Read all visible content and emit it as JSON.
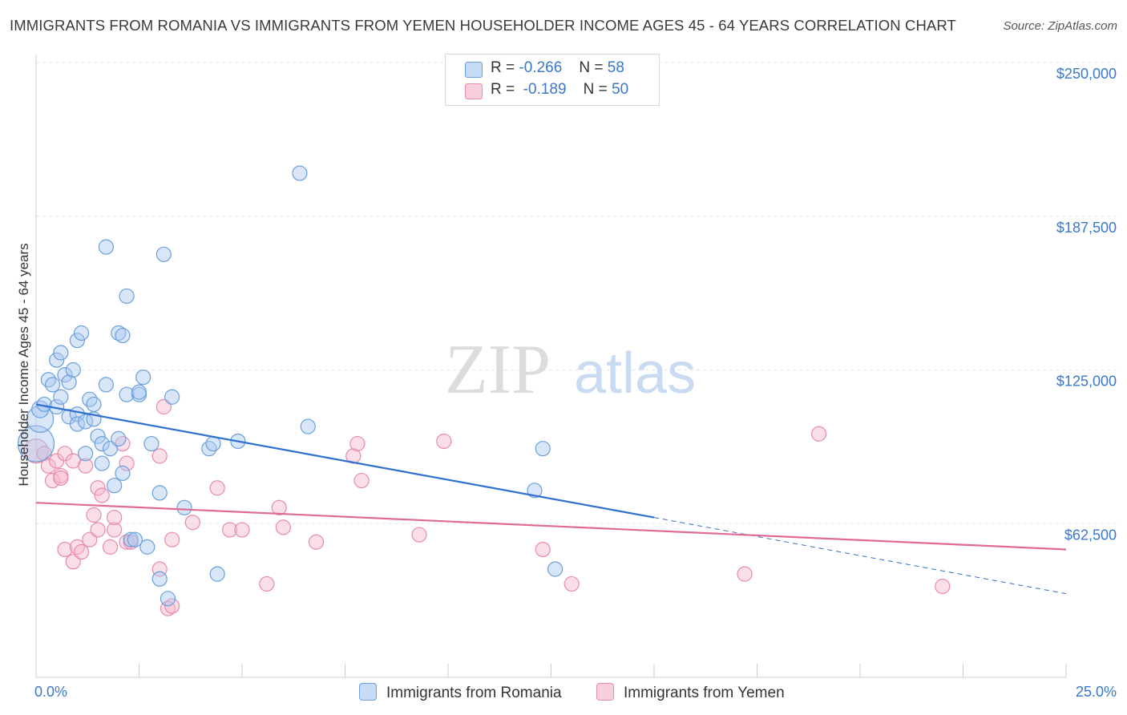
{
  "title": "IMMIGRANTS FROM ROMANIA VS IMMIGRANTS FROM YEMEN HOUSEHOLDER INCOME AGES 45 - 64 YEARS CORRELATION CHART",
  "source": "Source: ZipAtlas.com",
  "watermark": {
    "zip": "ZIP",
    "atlas": "atlas"
  },
  "legend": {
    "romania": {
      "r_label": "R =",
      "r_value": "-0.266",
      "n_label": "N =",
      "n_value": "58"
    },
    "yemen": {
      "r_label": "R =",
      "r_value": "-0.189",
      "n_label": "N =",
      "n_value": "50"
    }
  },
  "colors": {
    "romania_fill": "#a9c8f0",
    "romania_stroke": "#6a9fdc",
    "romania_line": "#2f6fd0",
    "yemen_fill": "#f6b8cc",
    "yemen_stroke": "#e88aa9",
    "yemen_line": "#e06a94",
    "tick_text": "#3a78c9",
    "grid": "#e4e4e4"
  },
  "chart_data": {
    "type": "scatter",
    "ylabel": "Householder Income Ages 45 - 64 years",
    "x_tick_labels": [
      "0.0%",
      "25.0%"
    ],
    "y_tick_labels": [
      "$62,500",
      "$125,000",
      "$187,500",
      "$250,000"
    ],
    "x_range": [
      0,
      25
    ],
    "y_range": [
      0,
      250000
    ],
    "y_ticks": [
      62500,
      125000,
      187500,
      250000
    ],
    "grid": "horizontal-dashed",
    "legend_position": "top-center",
    "series": [
      {
        "name": "Immigrants from Romania",
        "trend": {
          "x0": 0,
          "y0": 111000,
          "x1": 15,
          "y1": 65000,
          "dashed_to_x": 25,
          "dashed_to_y": 34000
        },
        "points": [
          [
            0.0,
            95000,
            30
          ],
          [
            0.1,
            105000,
            22
          ],
          [
            0.1,
            109000,
            14
          ],
          [
            0.2,
            111000,
            12
          ],
          [
            0.3,
            121000,
            12
          ],
          [
            0.4,
            119000,
            12
          ],
          [
            0.5,
            110000,
            12
          ],
          [
            0.5,
            129000,
            12
          ],
          [
            0.6,
            114000,
            12
          ],
          [
            0.6,
            132000,
            12
          ],
          [
            0.7,
            123000,
            12
          ],
          [
            0.8,
            120000,
            12
          ],
          [
            0.8,
            106000,
            12
          ],
          [
            0.9,
            125000,
            12
          ],
          [
            1.0,
            107000,
            12
          ],
          [
            1.0,
            137000,
            12
          ],
          [
            1.0,
            103000,
            12
          ],
          [
            1.1,
            140000,
            12
          ],
          [
            1.2,
            91000,
            12
          ],
          [
            1.2,
            104000,
            12
          ],
          [
            1.3,
            113000,
            12
          ],
          [
            1.4,
            111000,
            12
          ],
          [
            1.4,
            105000,
            12
          ],
          [
            1.5,
            98000,
            12
          ],
          [
            1.6,
            87000,
            12
          ],
          [
            1.6,
            95000,
            12
          ],
          [
            1.7,
            175000,
            12
          ],
          [
            1.7,
            119000,
            12
          ],
          [
            1.8,
            93000,
            12
          ],
          [
            1.9,
            78000,
            12
          ],
          [
            2.0,
            97000,
            12
          ],
          [
            2.0,
            140000,
            12
          ],
          [
            2.1,
            83000,
            12
          ],
          [
            2.1,
            139000,
            12
          ],
          [
            2.2,
            155000,
            12
          ],
          [
            2.2,
            115000,
            12
          ],
          [
            2.3,
            56000,
            12
          ],
          [
            2.4,
            56000,
            12
          ],
          [
            2.5,
            115000,
            12
          ],
          [
            2.5,
            116000,
            12
          ],
          [
            2.6,
            122000,
            12
          ],
          [
            2.7,
            53000,
            12
          ],
          [
            2.8,
            95000,
            12
          ],
          [
            3.0,
            75000,
            12
          ],
          [
            3.0,
            40000,
            12
          ],
          [
            3.1,
            172000,
            12
          ],
          [
            3.2,
            32000,
            12
          ],
          [
            3.3,
            114000,
            12
          ],
          [
            3.6,
            69000,
            12
          ],
          [
            4.2,
            93000,
            12
          ],
          [
            4.3,
            95000,
            12
          ],
          [
            4.4,
            42000,
            12
          ],
          [
            4.9,
            96000,
            12
          ],
          [
            6.4,
            205000,
            12
          ],
          [
            6.6,
            102000,
            12
          ],
          [
            12.1,
            76000,
            12
          ],
          [
            12.3,
            93000,
            12
          ],
          [
            12.6,
            44000,
            12
          ]
        ]
      },
      {
        "name": "Immigrants from Yemen",
        "trend": {
          "x0": 0,
          "y0": 71000,
          "x1": 25,
          "y1": 52000
        },
        "points": [
          [
            0.0,
            92000,
            20
          ],
          [
            0.2,
            91000,
            12
          ],
          [
            0.3,
            86000,
            12
          ],
          [
            0.4,
            80000,
            12
          ],
          [
            0.5,
            88000,
            12
          ],
          [
            0.6,
            82000,
            12
          ],
          [
            0.6,
            81000,
            12
          ],
          [
            0.7,
            52000,
            12
          ],
          [
            0.7,
            91000,
            12
          ],
          [
            0.9,
            88000,
            12
          ],
          [
            0.9,
            47000,
            12
          ],
          [
            1.0,
            53000,
            12
          ],
          [
            1.1,
            51000,
            12
          ],
          [
            1.2,
            86000,
            12
          ],
          [
            1.3,
            56000,
            12
          ],
          [
            1.4,
            66000,
            12
          ],
          [
            1.5,
            77000,
            12
          ],
          [
            1.5,
            60000,
            12
          ],
          [
            1.6,
            74000,
            12
          ],
          [
            1.8,
            53000,
            12
          ],
          [
            1.9,
            60000,
            12
          ],
          [
            1.9,
            65000,
            12
          ],
          [
            2.1,
            95000,
            12
          ],
          [
            2.2,
            55000,
            12
          ],
          [
            2.2,
            87000,
            12
          ],
          [
            2.3,
            55000,
            12
          ],
          [
            3.0,
            90000,
            12
          ],
          [
            3.0,
            44000,
            12
          ],
          [
            3.1,
            110000,
            12
          ],
          [
            3.2,
            28000,
            12
          ],
          [
            3.3,
            29000,
            12
          ],
          [
            3.3,
            56000,
            12
          ],
          [
            3.8,
            63000,
            12
          ],
          [
            4.4,
            77000,
            12
          ],
          [
            4.7,
            60000,
            12
          ],
          [
            5.0,
            60000,
            12
          ],
          [
            5.6,
            38000,
            12
          ],
          [
            5.9,
            69000,
            12
          ],
          [
            6.0,
            61000,
            12
          ],
          [
            6.8,
            55000,
            12
          ],
          [
            7.7,
            90000,
            12
          ],
          [
            7.8,
            95000,
            12
          ],
          [
            7.9,
            80000,
            12
          ],
          [
            9.3,
            58000,
            12
          ],
          [
            9.9,
            96000,
            12
          ],
          [
            12.3,
            52000,
            12
          ],
          [
            13.0,
            38000,
            12
          ],
          [
            17.2,
            42000,
            12
          ],
          [
            19.0,
            99000,
            12
          ],
          [
            22.0,
            37000,
            12
          ]
        ]
      }
    ]
  },
  "bottom_legend": {
    "romania": "Immigrants from Romania",
    "yemen": "Immigrants from Yemen"
  }
}
